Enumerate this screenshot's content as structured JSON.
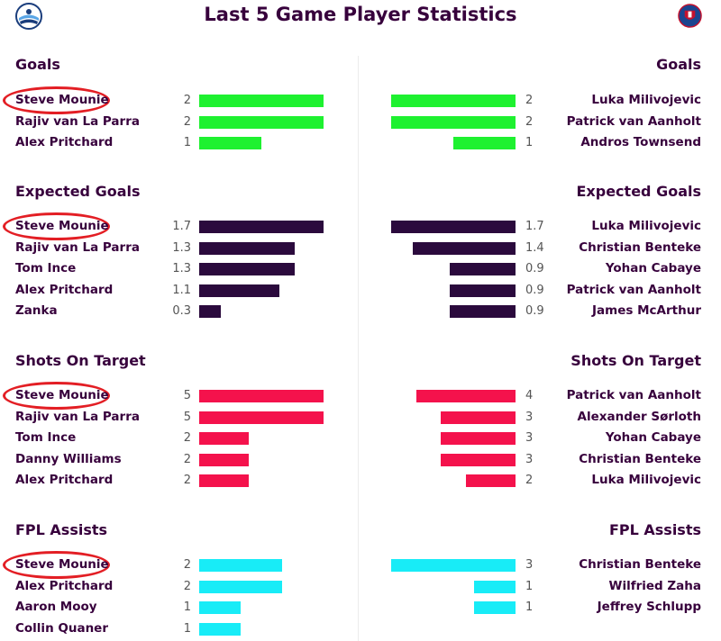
{
  "title": "Last 5 Game Player Statistics",
  "colors": {
    "goals": "#1ef130",
    "expected_goals": "#2b0a3d",
    "shots_on_target": "#f4124c",
    "fpl_assists": "#18ecf7",
    "highlight": "#e31e24"
  },
  "icons": {
    "home": "huddersfield-crest-icon",
    "away": "crystal-palace-crest-icon"
  },
  "chart_data": [
    {
      "type": "bar",
      "title": "Goals",
      "max": 2,
      "home": [
        {
          "name": "Steve Mounie",
          "value": 2,
          "label": "2",
          "highlight": true
        },
        {
          "name": "Rajiv van La Parra",
          "value": 2,
          "label": "2"
        },
        {
          "name": "Alex Pritchard",
          "value": 1,
          "label": "1"
        }
      ],
      "away": [
        {
          "name": "Luka Milivojevic",
          "value": 2,
          "label": "2"
        },
        {
          "name": "Patrick van Aanholt",
          "value": 2,
          "label": "2"
        },
        {
          "name": "Andros Townsend",
          "value": 1,
          "label": "1"
        }
      ]
    },
    {
      "type": "bar",
      "title": "Expected Goals",
      "max": 1.7,
      "home": [
        {
          "name": "Steve Mounie",
          "value": 1.7,
          "label": "1.7",
          "highlight": true
        },
        {
          "name": "Rajiv van La Parra",
          "value": 1.3,
          "label": "1.3"
        },
        {
          "name": "Tom Ince",
          "value": 1.3,
          "label": "1.3"
        },
        {
          "name": "Alex Pritchard",
          "value": 1.1,
          "label": "1.1"
        },
        {
          "name": "Zanka",
          "value": 0.3,
          "label": "0.3"
        }
      ],
      "away": [
        {
          "name": "Luka Milivojevic",
          "value": 1.7,
          "label": "1.7"
        },
        {
          "name": "Christian Benteke",
          "value": 1.4,
          "label": "1.4"
        },
        {
          "name": "Yohan Cabaye",
          "value": 0.9,
          "label": "0.9"
        },
        {
          "name": "Patrick van Aanholt",
          "value": 0.9,
          "label": "0.9"
        },
        {
          "name": "James McArthur",
          "value": 0.9,
          "label": "0.9"
        }
      ]
    },
    {
      "type": "bar",
      "title": "Shots On Target",
      "max": 5,
      "home": [
        {
          "name": "Steve Mounie",
          "value": 5,
          "label": "5",
          "highlight": true
        },
        {
          "name": "Rajiv van La Parra",
          "value": 5,
          "label": "5"
        },
        {
          "name": "Tom Ince",
          "value": 2,
          "label": "2"
        },
        {
          "name": "Danny Williams",
          "value": 2,
          "label": "2"
        },
        {
          "name": "Alex Pritchard",
          "value": 2,
          "label": "2"
        }
      ],
      "away": [
        {
          "name": "Patrick van Aanholt",
          "value": 4,
          "label": "4"
        },
        {
          "name": "Alexander Sørloth",
          "value": 3,
          "label": "3"
        },
        {
          "name": "Yohan Cabaye",
          "value": 3,
          "label": "3"
        },
        {
          "name": "Christian Benteke",
          "value": 3,
          "label": "3"
        },
        {
          "name": "Luka Milivojevic",
          "value": 2,
          "label": "2"
        }
      ]
    },
    {
      "type": "bar",
      "title": "FPL Assists",
      "max": 3,
      "home": [
        {
          "name": "Steve Mounie",
          "value": 2,
          "label": "2",
          "highlight": true
        },
        {
          "name": "Alex Pritchard",
          "value": 2,
          "label": "2"
        },
        {
          "name": "Aaron Mooy",
          "value": 1,
          "label": "1"
        },
        {
          "name": "Collin Quaner",
          "value": 1,
          "label": "1"
        }
      ],
      "away": [
        {
          "name": "Christian Benteke",
          "value": 3,
          "label": "3"
        },
        {
          "name": "Wilfried Zaha",
          "value": 1,
          "label": "1"
        },
        {
          "name": "Jeffrey Schlupp",
          "value": 1,
          "label": "1"
        }
      ]
    }
  ]
}
